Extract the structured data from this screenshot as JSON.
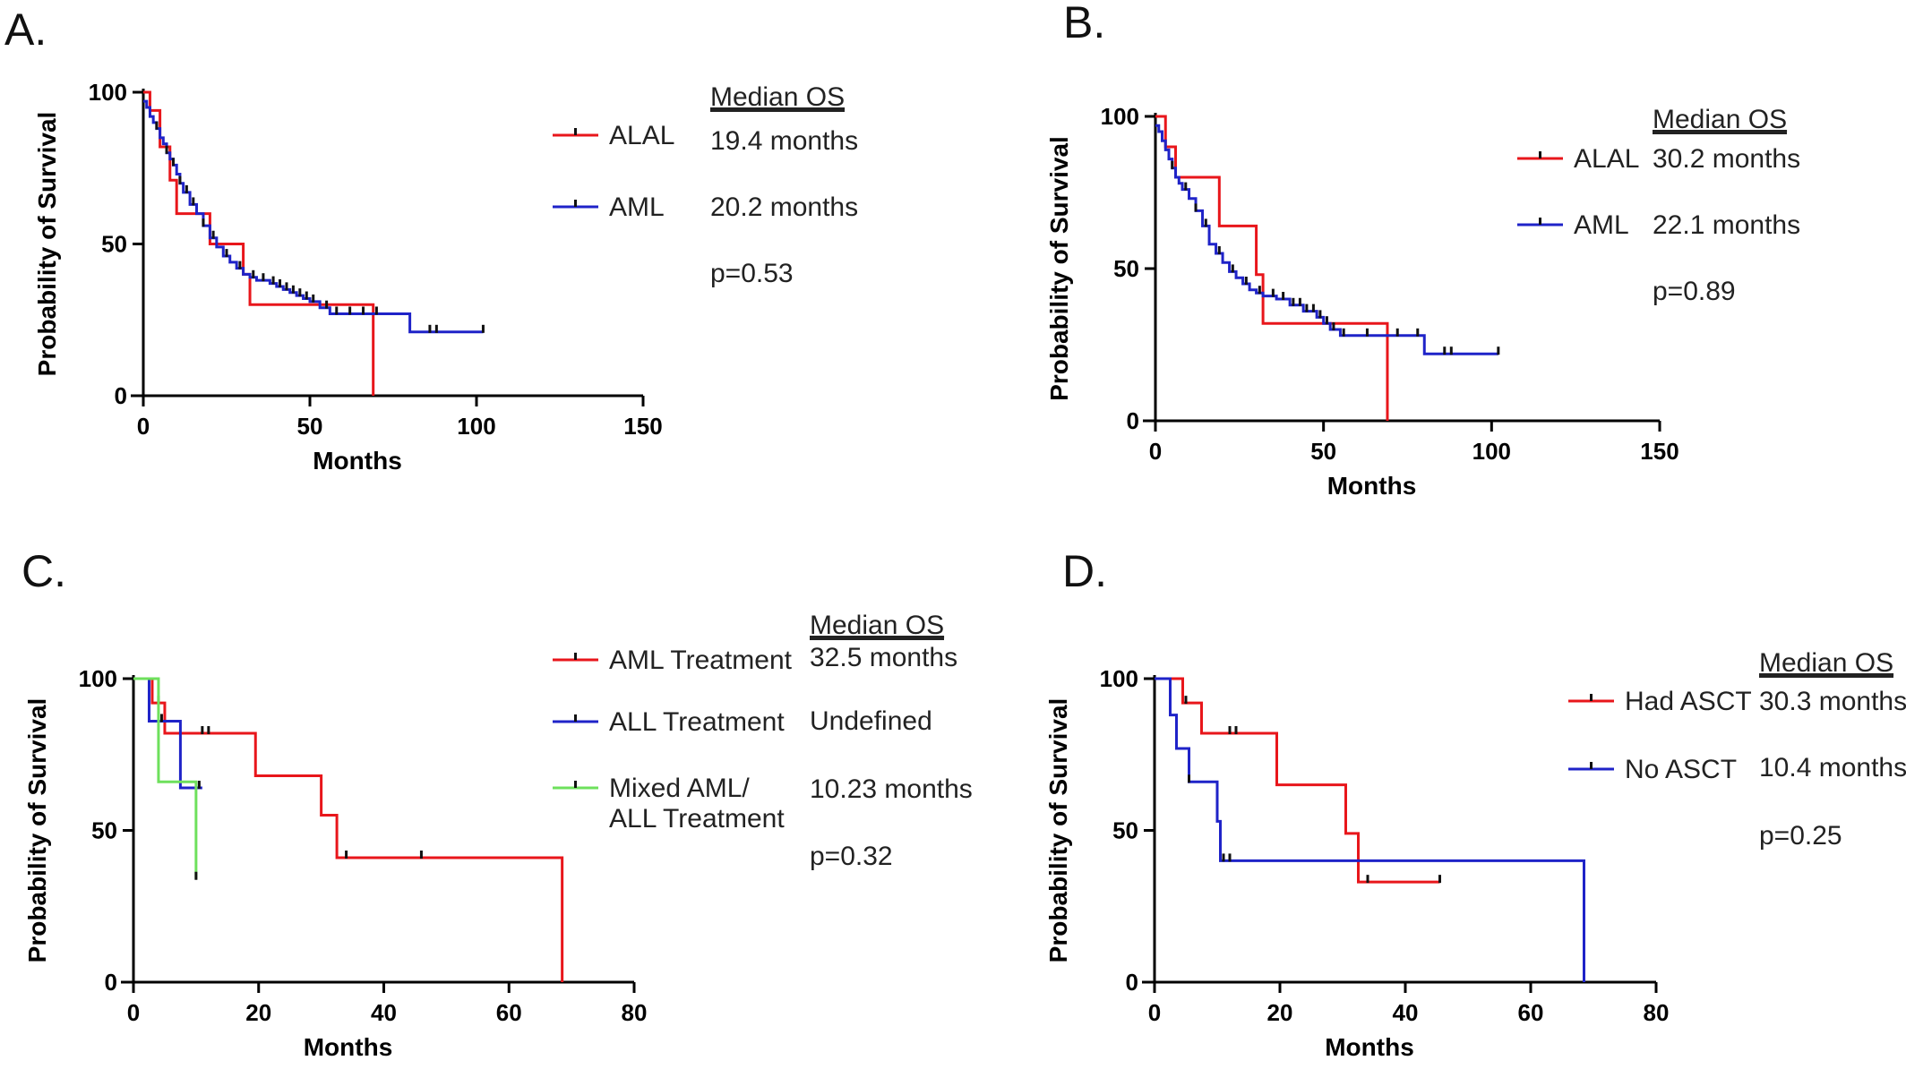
{
  "figure": {
    "panels": [
      {
        "label": "A.",
        "median_header": "Median OS",
        "p_value": "p=0.53"
      },
      {
        "label": "B.",
        "median_header": "Median OS",
        "p_value": "p=0.89"
      },
      {
        "label": "C.",
        "median_header": "Median OS",
        "p_value": "p=0.32"
      },
      {
        "label": "D.",
        "median_header": "Median OS",
        "p_value": "p=0.25"
      }
    ]
  },
  "chart_data": [
    {
      "type": "line",
      "step": true,
      "xlabel": "Months",
      "ylabel": "Probability of Survival",
      "xlim": [
        0,
        150
      ],
      "ylim": [
        0,
        100
      ],
      "xticks": [
        0,
        50,
        100,
        150
      ],
      "yticks": [
        0,
        50,
        100
      ],
      "series": [
        {
          "name": "ALAL",
          "color": "#e8161b",
          "median": "19.4 months",
          "x": [
            0,
            2,
            5,
            8,
            10,
            14,
            20,
            30,
            32,
            69,
            69
          ],
          "y": [
            100,
            94,
            82,
            71,
            60,
            60,
            50,
            40,
            30,
            30,
            0
          ],
          "censor_x": []
        },
        {
          "name": "AML",
          "color": "#1f23c8",
          "median": "20.2 months",
          "x": [
            0,
            1,
            2,
            3,
            4,
            5,
            6,
            7,
            8,
            9,
            10,
            11,
            12,
            14,
            16,
            18,
            20,
            22,
            24,
            26,
            28,
            30,
            32,
            34,
            36,
            38,
            40,
            42,
            44,
            46,
            48,
            50,
            53,
            56,
            60,
            65,
            70,
            75,
            80,
            85,
            90,
            95,
            100,
            102
          ],
          "y": [
            97,
            95,
            92,
            90,
            88,
            85,
            83,
            80,
            78,
            76,
            73,
            70,
            67,
            63,
            60,
            56,
            52,
            49,
            46,
            44,
            42,
            40,
            39,
            38,
            38,
            37,
            36,
            35,
            34,
            33,
            32,
            31,
            29,
            27,
            27,
            27,
            27,
            27,
            21,
            21,
            21,
            21,
            21,
            21
          ],
          "censor_x": [
            4,
            7,
            9,
            11,
            13,
            15,
            18,
            21,
            25,
            29,
            33,
            36,
            39,
            41,
            43,
            45,
            47,
            49,
            51,
            55,
            58,
            62,
            66,
            70,
            86,
            88,
            102
          ]
        }
      ]
    },
    {
      "type": "line",
      "step": true,
      "xlabel": "Months",
      "ylabel": "Probability of Survival",
      "xlim": [
        0,
        150
      ],
      "ylim": [
        0,
        100
      ],
      "xticks": [
        0,
        50,
        100,
        150
      ],
      "yticks": [
        0,
        50,
        100
      ],
      "series": [
        {
          "name": "ALAL",
          "color": "#e8161b",
          "median": "30.2 months",
          "x": [
            0,
            3,
            6,
            19,
            30,
            32,
            69,
            69
          ],
          "y": [
            100,
            90,
            80,
            64,
            48,
            32,
            32,
            0
          ],
          "censor_x": []
        },
        {
          "name": "AML",
          "color": "#1f23c8",
          "median": "22.1 months",
          "x": [
            0,
            1,
            2,
            3,
            4,
            5,
            6,
            7,
            8,
            10,
            12,
            14,
            16,
            18,
            20,
            22,
            24,
            26,
            28,
            30,
            32,
            34,
            36,
            40,
            44,
            48,
            50,
            52,
            55,
            60,
            70,
            80,
            85,
            90,
            100,
            102
          ],
          "y": [
            97,
            95,
            92,
            89,
            86,
            83,
            80,
            78,
            76,
            73,
            69,
            64,
            58,
            55,
            52,
            49,
            47,
            45,
            43,
            42,
            41,
            41,
            40,
            38,
            36,
            34,
            32,
            30,
            28,
            28,
            28,
            22,
            22,
            22,
            22,
            22
          ],
          "censor_x": [
            5,
            9,
            12,
            15,
            19,
            23,
            27,
            31,
            35,
            38,
            41,
            43,
            45,
            47,
            49,
            51,
            53,
            56,
            63,
            72,
            78,
            86,
            88,
            102
          ]
        }
      ]
    },
    {
      "type": "line",
      "step": true,
      "xlabel": "Months",
      "ylabel": "Probability of Survival",
      "xlim": [
        0,
        80
      ],
      "ylim": [
        0,
        100
      ],
      "xticks": [
        0,
        20,
        40,
        60,
        80
      ],
      "yticks": [
        0,
        50,
        100
      ],
      "series": [
        {
          "name": "AML Treatment",
          "color": "#e8161b",
          "median": "32.5 months",
          "x": [
            0,
            3,
            5,
            19.5,
            30,
            32.5,
            68.5,
            68.5
          ],
          "y": [
            100,
            92,
            82,
            68,
            55,
            41,
            41,
            0
          ],
          "censor_x": [
            4,
            11,
            12,
            34,
            46
          ]
        },
        {
          "name": "ALL Treatment",
          "color": "#1f23c8",
          "median": "Undefined",
          "x": [
            0,
            2.5,
            7.5,
            11
          ],
          "y": [
            100,
            86,
            64,
            64
          ],
          "censor_x": [
            4.5,
            10.5
          ]
        },
        {
          "name": "Mixed AML/\nALL Treatment",
          "color": "#6ee05c",
          "median": "10.23 months",
          "x": [
            0,
            4,
            10,
            10
          ],
          "y": [
            100,
            66,
            66,
            34
          ],
          "censor_x": [
            10
          ]
        }
      ]
    },
    {
      "type": "line",
      "step": true,
      "xlabel": "Months",
      "ylabel": "Probability of Survival",
      "xlim": [
        0,
        80
      ],
      "ylim": [
        0,
        100
      ],
      "xticks": [
        0,
        20,
        40,
        60,
        80
      ],
      "yticks": [
        0,
        50,
        100
      ],
      "series": [
        {
          "name": "Had ASCT",
          "color": "#e8161b",
          "median": "30.3 months",
          "x": [
            0,
            4.5,
            7.5,
            19.5,
            30.5,
            32.5,
            45.5
          ],
          "y": [
            100,
            92,
            82,
            65,
            49,
            33,
            33
          ],
          "censor_x": [
            5,
            12,
            13,
            34,
            45.5
          ]
        },
        {
          "name": "No ASCT",
          "color": "#1f23c8",
          "median": "10.4 months",
          "x": [
            0,
            2.5,
            3.5,
            5.5,
            10,
            10.5,
            68.5,
            68.5
          ],
          "y": [
            100,
            88,
            77,
            66,
            53,
            40,
            40,
            0
          ],
          "censor_x": [
            5.5,
            11,
            12
          ]
        }
      ]
    }
  ]
}
